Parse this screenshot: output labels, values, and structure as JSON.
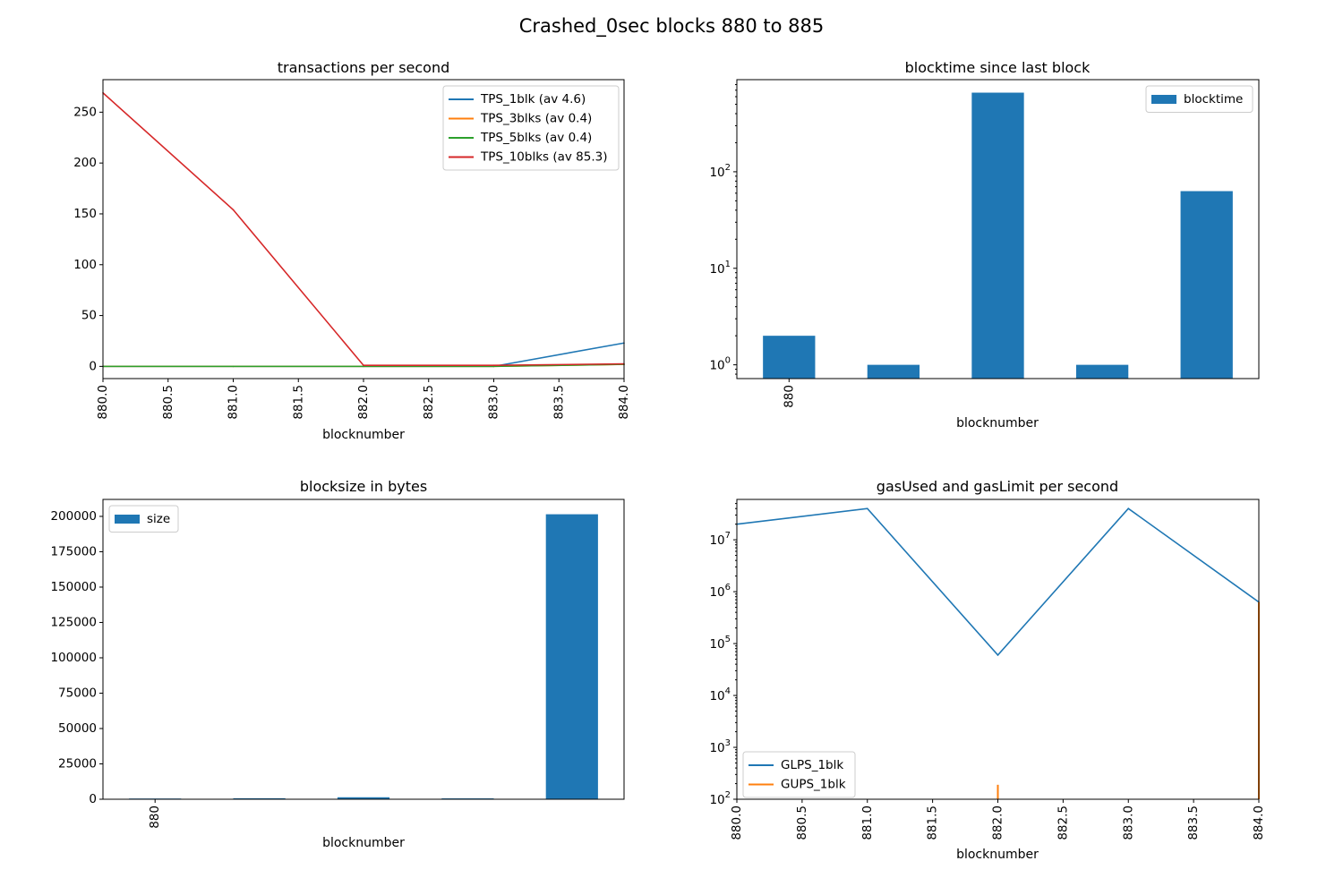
{
  "figure": {
    "suptitle": "Crashed_0sec blocks 880 to 885"
  },
  "chart_data": [
    {
      "type": "line",
      "title": "transactions per second",
      "xlabel": "blocknumber",
      "ylabel": "",
      "xlim": [
        880,
        884
      ],
      "ylim": [
        -12,
        282
      ],
      "xticks": [
        "880.0",
        "880.5",
        "881.0",
        "881.5",
        "882.0",
        "882.5",
        "883.0",
        "883.5",
        "884.0"
      ],
      "yticks": [
        0,
        50,
        100,
        150,
        200,
        250
      ],
      "x": [
        880,
        881,
        882,
        883,
        884
      ],
      "series": [
        {
          "name": "TPS_1blk (av 4.6)",
          "color": "#1f77b4",
          "values": [
            0,
            0,
            0,
            0,
            23
          ]
        },
        {
          "name": "TPS_3blks (av 0.4)",
          "color": "#ff7f0e",
          "values": [
            0,
            0,
            0,
            0,
            2
          ]
        },
        {
          "name": "TPS_5blks (av 0.4)",
          "color": "#2ca02c",
          "values": [
            0,
            0,
            0,
            0,
            2
          ]
        },
        {
          "name": "TPS_10blks (av 85.3)",
          "color": "#d62728",
          "values": [
            269,
            154,
            1,
            1,
            2.5
          ]
        }
      ],
      "legend": "upper right",
      "grid": false
    },
    {
      "type": "bar",
      "title": "blocktime since last block",
      "xlabel": "blocknumber",
      "yscale": "log",
      "ylim": [
        0.72,
        900
      ],
      "categories": [
        "880",
        "",
        "",
        "",
        ""
      ],
      "series": [
        {
          "name": "blocktime",
          "color": "#1f77b4",
          "values": [
            2,
            1,
            660,
            1,
            63
          ]
        }
      ],
      "yticks": [
        {
          "base": "10",
          "exp": "0"
        },
        {
          "base": "10",
          "exp": "1"
        },
        {
          "base": "10",
          "exp": "2"
        }
      ],
      "legend": "upper right",
      "grid": false
    },
    {
      "type": "bar",
      "title": "blocksize in bytes",
      "xlabel": "blocknumber",
      "ylim": [
        0,
        212000
      ],
      "categories": [
        "880",
        "",
        "",
        "",
        ""
      ],
      "yticks": [
        "0",
        "25000",
        "50000",
        "75000",
        "100000",
        "125000",
        "150000",
        "175000",
        "200000"
      ],
      "series": [
        {
          "name": "size",
          "color": "#1f77b4",
          "values": [
            500,
            700,
            1400,
            600,
            201500
          ]
        }
      ],
      "legend": "upper left",
      "grid": false
    },
    {
      "type": "line",
      "title": "gasUsed and gasLimit per second",
      "xlabel": "blocknumber",
      "yscale": "log",
      "xlim": [
        880,
        884
      ],
      "ylim": [
        100,
        60000000
      ],
      "xticks": [
        "880.0",
        "880.5",
        "881.0",
        "881.5",
        "882.0",
        "882.5",
        "883.0",
        "883.5",
        "884.0"
      ],
      "yticks": [
        {
          "base": "10",
          "exp": "2"
        },
        {
          "base": "10",
          "exp": "3"
        },
        {
          "base": "10",
          "exp": "4"
        },
        {
          "base": "10",
          "exp": "5"
        },
        {
          "base": "10",
          "exp": "6"
        },
        {
          "base": "10",
          "exp": "7"
        }
      ],
      "x": [
        880,
        881,
        882,
        883,
        884
      ],
      "series": [
        {
          "name": "GLPS_1blk",
          "color": "#1f77b4",
          "values": [
            20000000,
            40000000,
            60000,
            40000000,
            630000
          ]
        },
        {
          "name": "GUPS_1blk",
          "color": "#ff7f0e",
          "values": [
            null,
            null,
            190,
            null,
            630000
          ]
        }
      ],
      "legend": "lower left",
      "grid": false
    }
  ]
}
